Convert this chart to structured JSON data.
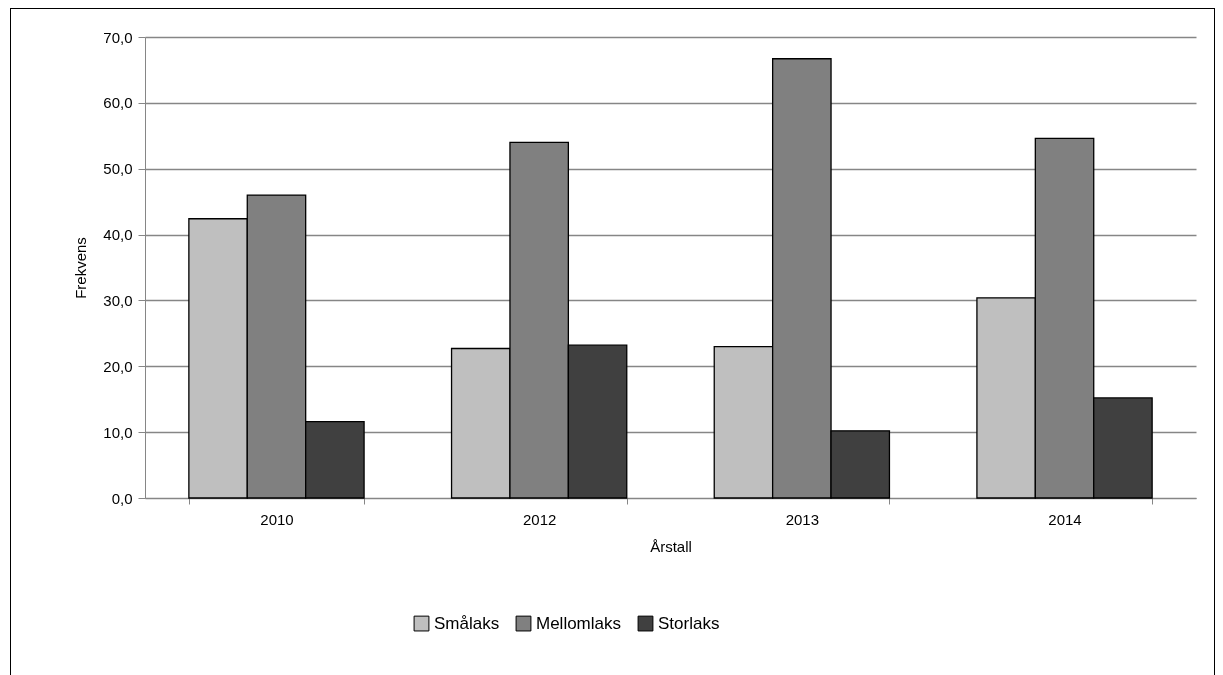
{
  "chart_data": {
    "type": "bar",
    "xlabel": "Årstall",
    "ylabel": "Frekvens",
    "categories": [
      "2010",
      "2012",
      "2013",
      "2014"
    ],
    "series": [
      {
        "name": "Smålaks",
        "color": "#bfbfbf",
        "values": [
          42.4,
          22.7,
          23.0,
          30.4
        ]
      },
      {
        "name": "Mellomlaks",
        "color": "#808080",
        "values": [
          46.0,
          54.0,
          66.7,
          54.6
        ]
      },
      {
        "name": "Storlaks",
        "color": "#404040",
        "values": [
          11.6,
          23.2,
          10.2,
          15.2
        ]
      }
    ],
    "ylim": [
      0,
      70
    ],
    "yticks": [
      {
        "value": 0,
        "label": "0,0"
      },
      {
        "value": 10,
        "label": "10,0"
      },
      {
        "value": 20,
        "label": "20,0"
      },
      {
        "value": 30,
        "label": "30,0"
      },
      {
        "value": 40,
        "label": "40,0"
      },
      {
        "value": 50,
        "label": "50,0"
      },
      {
        "value": 60,
        "label": "60,0"
      },
      {
        "value": 70,
        "label": "70,0"
      }
    ],
    "grid": "y",
    "legend": "bottom"
  }
}
